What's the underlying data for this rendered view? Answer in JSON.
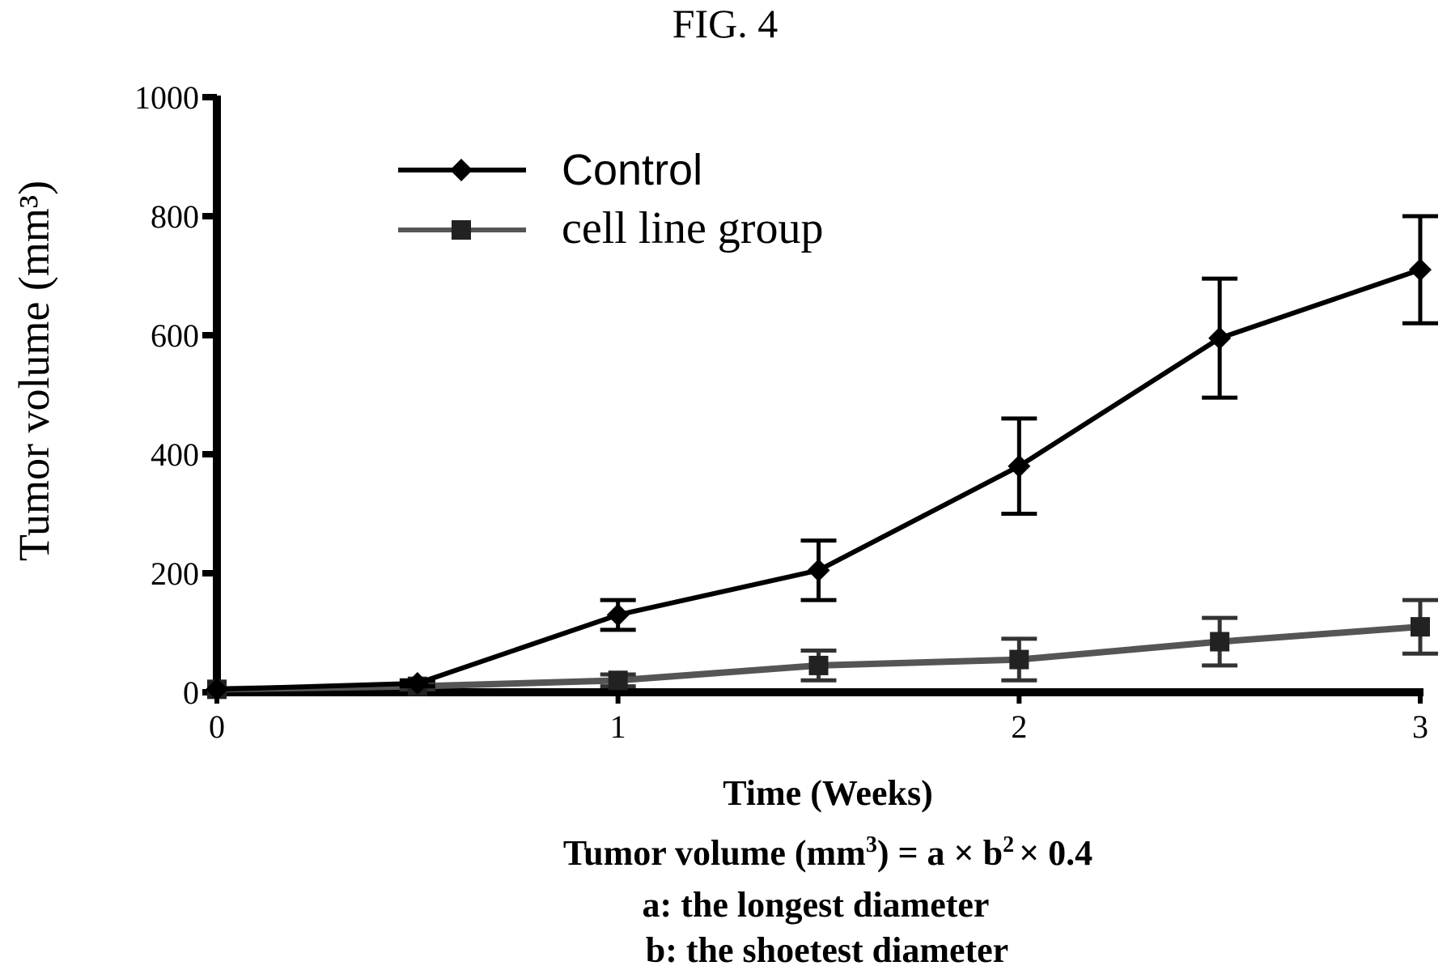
{
  "figure": {
    "title": "FIG. 4"
  },
  "chart_data": {
    "type": "line",
    "title": "",
    "xlabel": "Time (Weeks)",
    "ylabel": "Tumor volume (mm³)",
    "xlim": [
      0,
      3
    ],
    "ylim": [
      0,
      1000
    ],
    "x_ticks": [
      0,
      1,
      2,
      3
    ],
    "y_ticks": [
      0,
      200,
      400,
      600,
      800,
      1000
    ],
    "grid": false,
    "legend_position": "top-left",
    "series": [
      {
        "name": "Control",
        "color": "#000000",
        "marker": "diamond",
        "x": [
          0,
          0.5,
          1,
          1.5,
          2,
          2.5,
          3
        ],
        "y": [
          5,
          15,
          130,
          205,
          380,
          595,
          710
        ],
        "error": [
          0,
          5,
          25,
          50,
          80,
          100,
          90
        ]
      },
      {
        "name": "cell line group",
        "color": "#555555",
        "marker": "square",
        "x": [
          0,
          0.5,
          1,
          1.5,
          2,
          2.5,
          3
        ],
        "y": [
          5,
          10,
          20,
          45,
          55,
          85,
          110
        ],
        "error": [
          0,
          5,
          10,
          25,
          35,
          40,
          45
        ]
      }
    ]
  },
  "notes": {
    "formula_prefix": "Tumor volume (mm",
    "formula_sup": "3",
    "formula_middle": ") = a × b",
    "formula_sup2": "2",
    "formula_suffix": "× 0.4",
    "line_a": "a: the longest diameter",
    "line_b": "b: the shoetest diameter"
  }
}
